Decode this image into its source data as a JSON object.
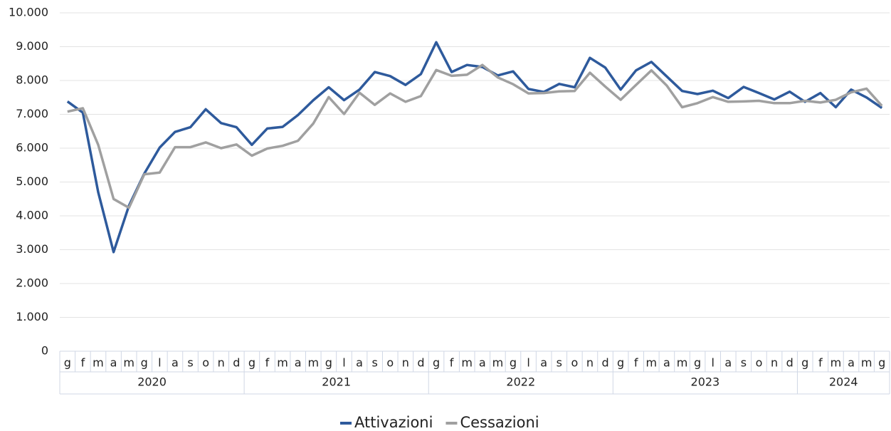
{
  "chart_data": {
    "type": "line",
    "categories": [
      "g",
      "f",
      "m",
      "a",
      "m",
      "g",
      "l",
      "a",
      "s",
      "o",
      "n",
      "d",
      "g",
      "f",
      "m",
      "a",
      "m",
      "g",
      "l",
      "a",
      "s",
      "o",
      "n",
      "d",
      "g",
      "f",
      "m",
      "a",
      "m",
      "g",
      "l",
      "a",
      "s",
      "o",
      "n",
      "d",
      "g",
      "f",
      "m",
      "a",
      "m",
      "g",
      "l",
      "a",
      "s",
      "o",
      "n",
      "d",
      "g",
      "f",
      "m",
      "a",
      "m",
      "g"
    ],
    "year_groups": [
      {
        "label": "2020",
        "count": 12
      },
      {
        "label": "2021",
        "count": 12
      },
      {
        "label": "2022",
        "count": 12
      },
      {
        "label": "2023",
        "count": 12
      },
      {
        "label": "2024",
        "count": 6
      }
    ],
    "series": [
      {
        "name": "Attivazioni",
        "color": "#2e5a9c",
        "values": [
          7380,
          7050,
          4700,
          2930,
          4300,
          5250,
          6020,
          6480,
          6620,
          7150,
          6740,
          6620,
          6100,
          6580,
          6630,
          6980,
          7420,
          7800,
          7420,
          7730,
          8250,
          8130,
          7870,
          8190,
          9130,
          8250,
          8460,
          8400,
          8150,
          8270,
          7750,
          7660,
          7900,
          7800,
          8670,
          8380,
          7730,
          8300,
          8550,
          8120,
          7690,
          7600,
          7700,
          7480,
          7810,
          7630,
          7440,
          7670,
          7370,
          7630,
          7210,
          7730,
          7500,
          7190
        ]
      },
      {
        "name": "Cessazioni",
        "color": "#a0a0a0",
        "values": [
          7080,
          7180,
          6100,
          4500,
          4240,
          5230,
          5280,
          6030,
          6030,
          6170,
          6000,
          6110,
          5780,
          5990,
          6070,
          6220,
          6730,
          7510,
          7010,
          7640,
          7280,
          7620,
          7370,
          7540,
          8310,
          8140,
          8170,
          8460,
          8090,
          7890,
          7620,
          7630,
          7680,
          7690,
          8230,
          7820,
          7430,
          7870,
          8300,
          7850,
          7210,
          7330,
          7510,
          7370,
          7380,
          7400,
          7330,
          7330,
          7400,
          7350,
          7430,
          7650,
          7760,
          7250
        ]
      }
    ],
    "ylim": [
      0,
      10000
    ],
    "yticks": [
      0,
      {
        "value": 1000,
        "label": "1.000"
      },
      {
        "value": 2000,
        "label": "2.000"
      },
      {
        "value": 3000,
        "label": "3.000"
      },
      {
        "value": 4000,
        "label": "4.000"
      },
      {
        "value": 5000,
        "label": "5.000"
      },
      {
        "value": 6000,
        "label": "6.000"
      },
      {
        "value": 7000,
        "label": "7.000"
      },
      {
        "value": 8000,
        "label": "8.000"
      },
      {
        "value": 9000,
        "label": "9.000"
      },
      {
        "value": 10000,
        "label": "10.000"
      }
    ],
    "grid": true,
    "legend": "bottom"
  }
}
